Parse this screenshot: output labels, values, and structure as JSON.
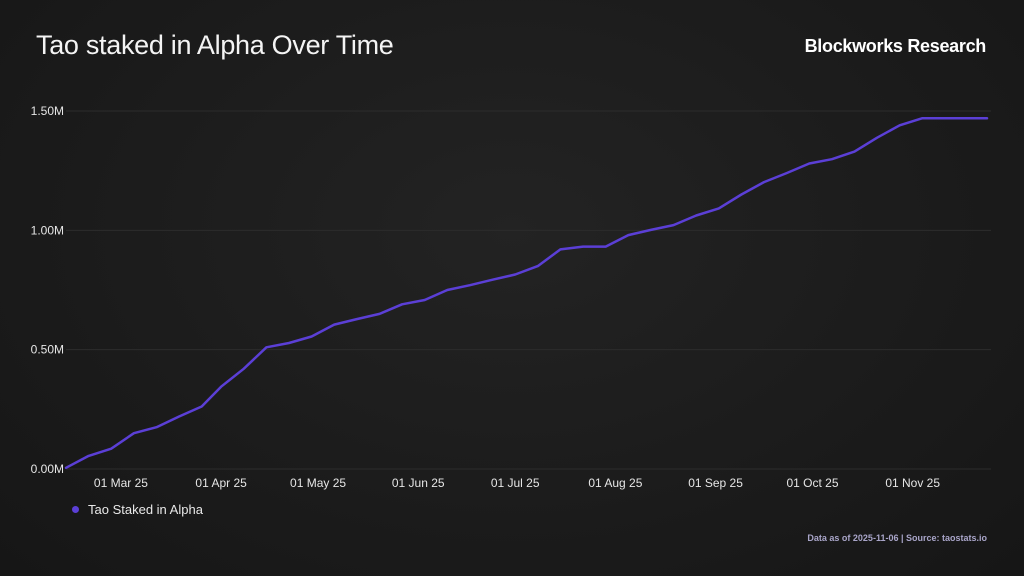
{
  "header": {
    "title": "Tao staked in Alpha Over Time",
    "brand": "Blockworks Research"
  },
  "footer": {
    "note": "Data as of 2025-11-06 | Source: taostats.io"
  },
  "colors": {
    "series": "#5b3fd6",
    "grid": "#2c2c2c",
    "tick_text": "#e6e6e6"
  },
  "chart_data": {
    "type": "line",
    "title": "Tao staked in Alpha Over Time",
    "xlabel": "",
    "ylabel": "",
    "ylim": [
      0,
      1500000
    ],
    "x_range": [
      0,
      285
    ],
    "y_ticks": [
      {
        "value": 0,
        "label": "0.00M"
      },
      {
        "value": 500000,
        "label": "0.50M"
      },
      {
        "value": 1000000,
        "label": "1.00M"
      },
      {
        "value": 1500000,
        "label": "1.50M"
      }
    ],
    "x_ticks": [
      {
        "value": 17,
        "label": "01 Mar 25"
      },
      {
        "value": 48,
        "label": "01 Apr 25"
      },
      {
        "value": 78,
        "label": "01 May 25"
      },
      {
        "value": 109,
        "label": "01 Jun 25"
      },
      {
        "value": 139,
        "label": "01 Jul 25"
      },
      {
        "value": 170,
        "label": "01 Aug 25"
      },
      {
        "value": 201,
        "label": "01 Sep 25"
      },
      {
        "value": 231,
        "label": "01 Oct 25"
      },
      {
        "value": 262,
        "label": "01 Nov 25"
      }
    ],
    "legend": "bottom-left",
    "series": [
      {
        "name": "Tao Staked in Alpha",
        "x": [
          0,
          7,
          14,
          21,
          28,
          35,
          42,
          48,
          55,
          62,
          69,
          76,
          83,
          90,
          97,
          104,
          111,
          118,
          125,
          132,
          139,
          146,
          153,
          160,
          167,
          174,
          181,
          188,
          195,
          202,
          209,
          216,
          223,
          230,
          237,
          244,
          251,
          258,
          265,
          272,
          279,
          285
        ],
        "values": [
          5000,
          55000,
          85000,
          150000,
          175000,
          220000,
          262000,
          345000,
          420000,
          510000,
          528000,
          555000,
          605000,
          628000,
          650000,
          690000,
          708000,
          750000,
          770000,
          793000,
          815000,
          850000,
          920000,
          932000,
          932000,
          980000,
          1002000,
          1022000,
          1062000,
          1092000,
          1150000,
          1202000,
          1240000,
          1280000,
          1298000,
          1330000,
          1388000,
          1440000,
          1470000,
          1470000,
          1470000,
          1470000
        ]
      }
    ]
  },
  "legend": {
    "label": "Tao Staked in Alpha"
  }
}
